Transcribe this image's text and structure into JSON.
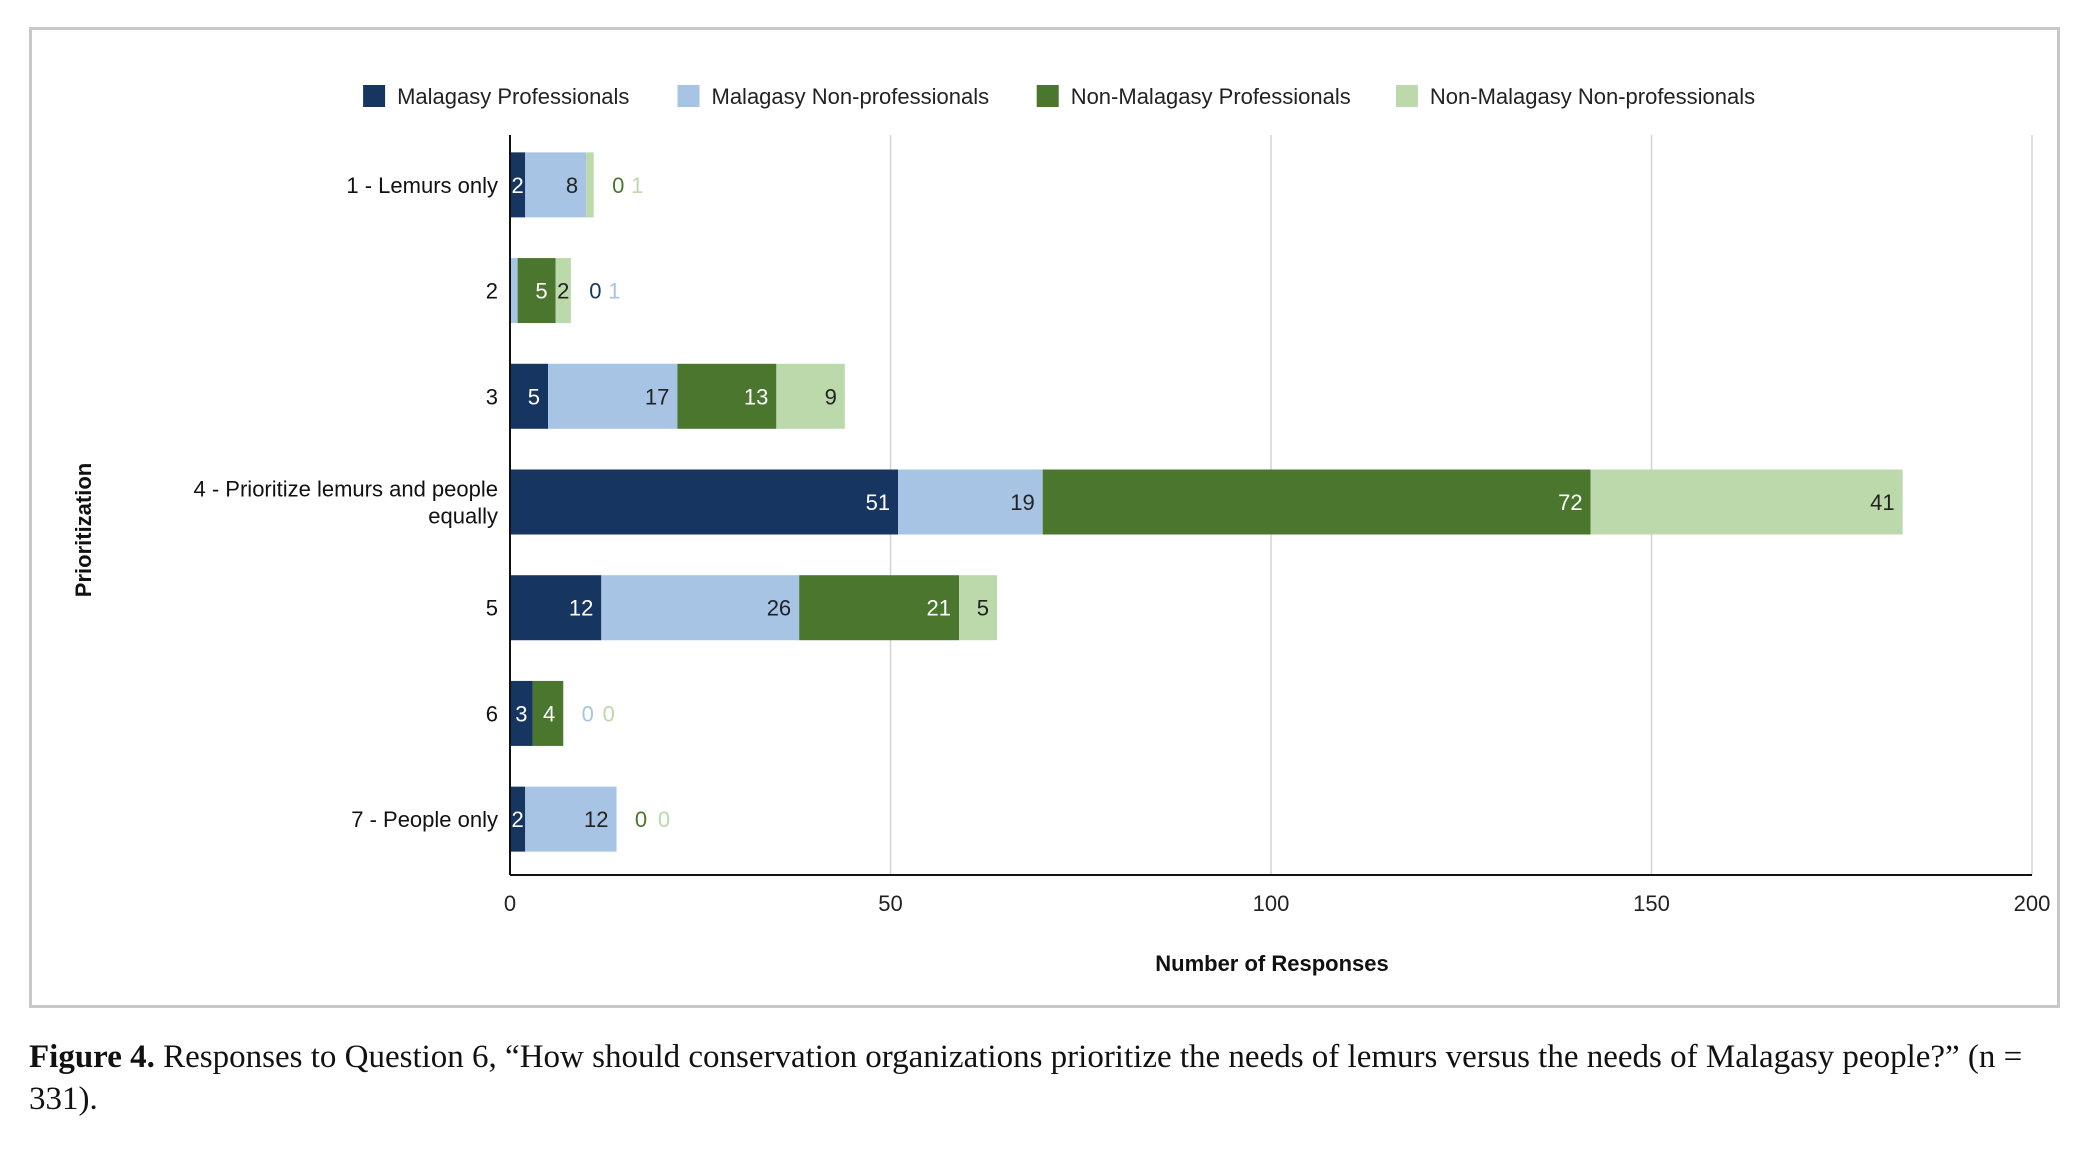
{
  "chart_data": {
    "type": "bar",
    "orientation": "horizontal",
    "stacked": true,
    "categories": [
      "1 - Lemurs only",
      "2",
      "3",
      "4 - Prioritize lemurs and people equally",
      "5",
      "6",
      "7 - People only"
    ],
    "series": [
      {
        "name": "Malagasy Professionals",
        "color": "#173561",
        "label_color": "#ffffff",
        "values": [
          2,
          0,
          5,
          51,
          12,
          3,
          2
        ]
      },
      {
        "name": "Malagasy Non-professionals",
        "color": "#a7c4e5",
        "label_color": "#222222",
        "values": [
          8,
          1,
          17,
          19,
          26,
          0,
          12
        ]
      },
      {
        "name": "Non-Malagasy Professionals",
        "color": "#4a762e",
        "label_color": "#ffffff",
        "values": [
          0,
          5,
          13,
          72,
          21,
          4,
          0
        ]
      },
      {
        "name": "Non-Malagasy Non-professionals",
        "color": "#bcd9ab",
        "label_color": "#222222",
        "values": [
          1,
          2,
          9,
          41,
          5,
          0,
          0
        ]
      }
    ],
    "outside_label_colors": [
      "#173561",
      "#a7c4e5",
      "#4a762e",
      "#bcd9ab"
    ],
    "xlabel": "Number of Responses",
    "ylabel": "Prioritization",
    "xlim": [
      0,
      200
    ],
    "xticks": [
      0,
      50,
      100,
      150,
      200
    ],
    "grid": "vertical",
    "legend_position": "top"
  },
  "caption": {
    "lead": "Figure 4.",
    "text": " Responses to Question 6, “How should conservation organizations prioritize the needs of lemurs versus the needs of Malagasy people?” (n = 331)."
  }
}
